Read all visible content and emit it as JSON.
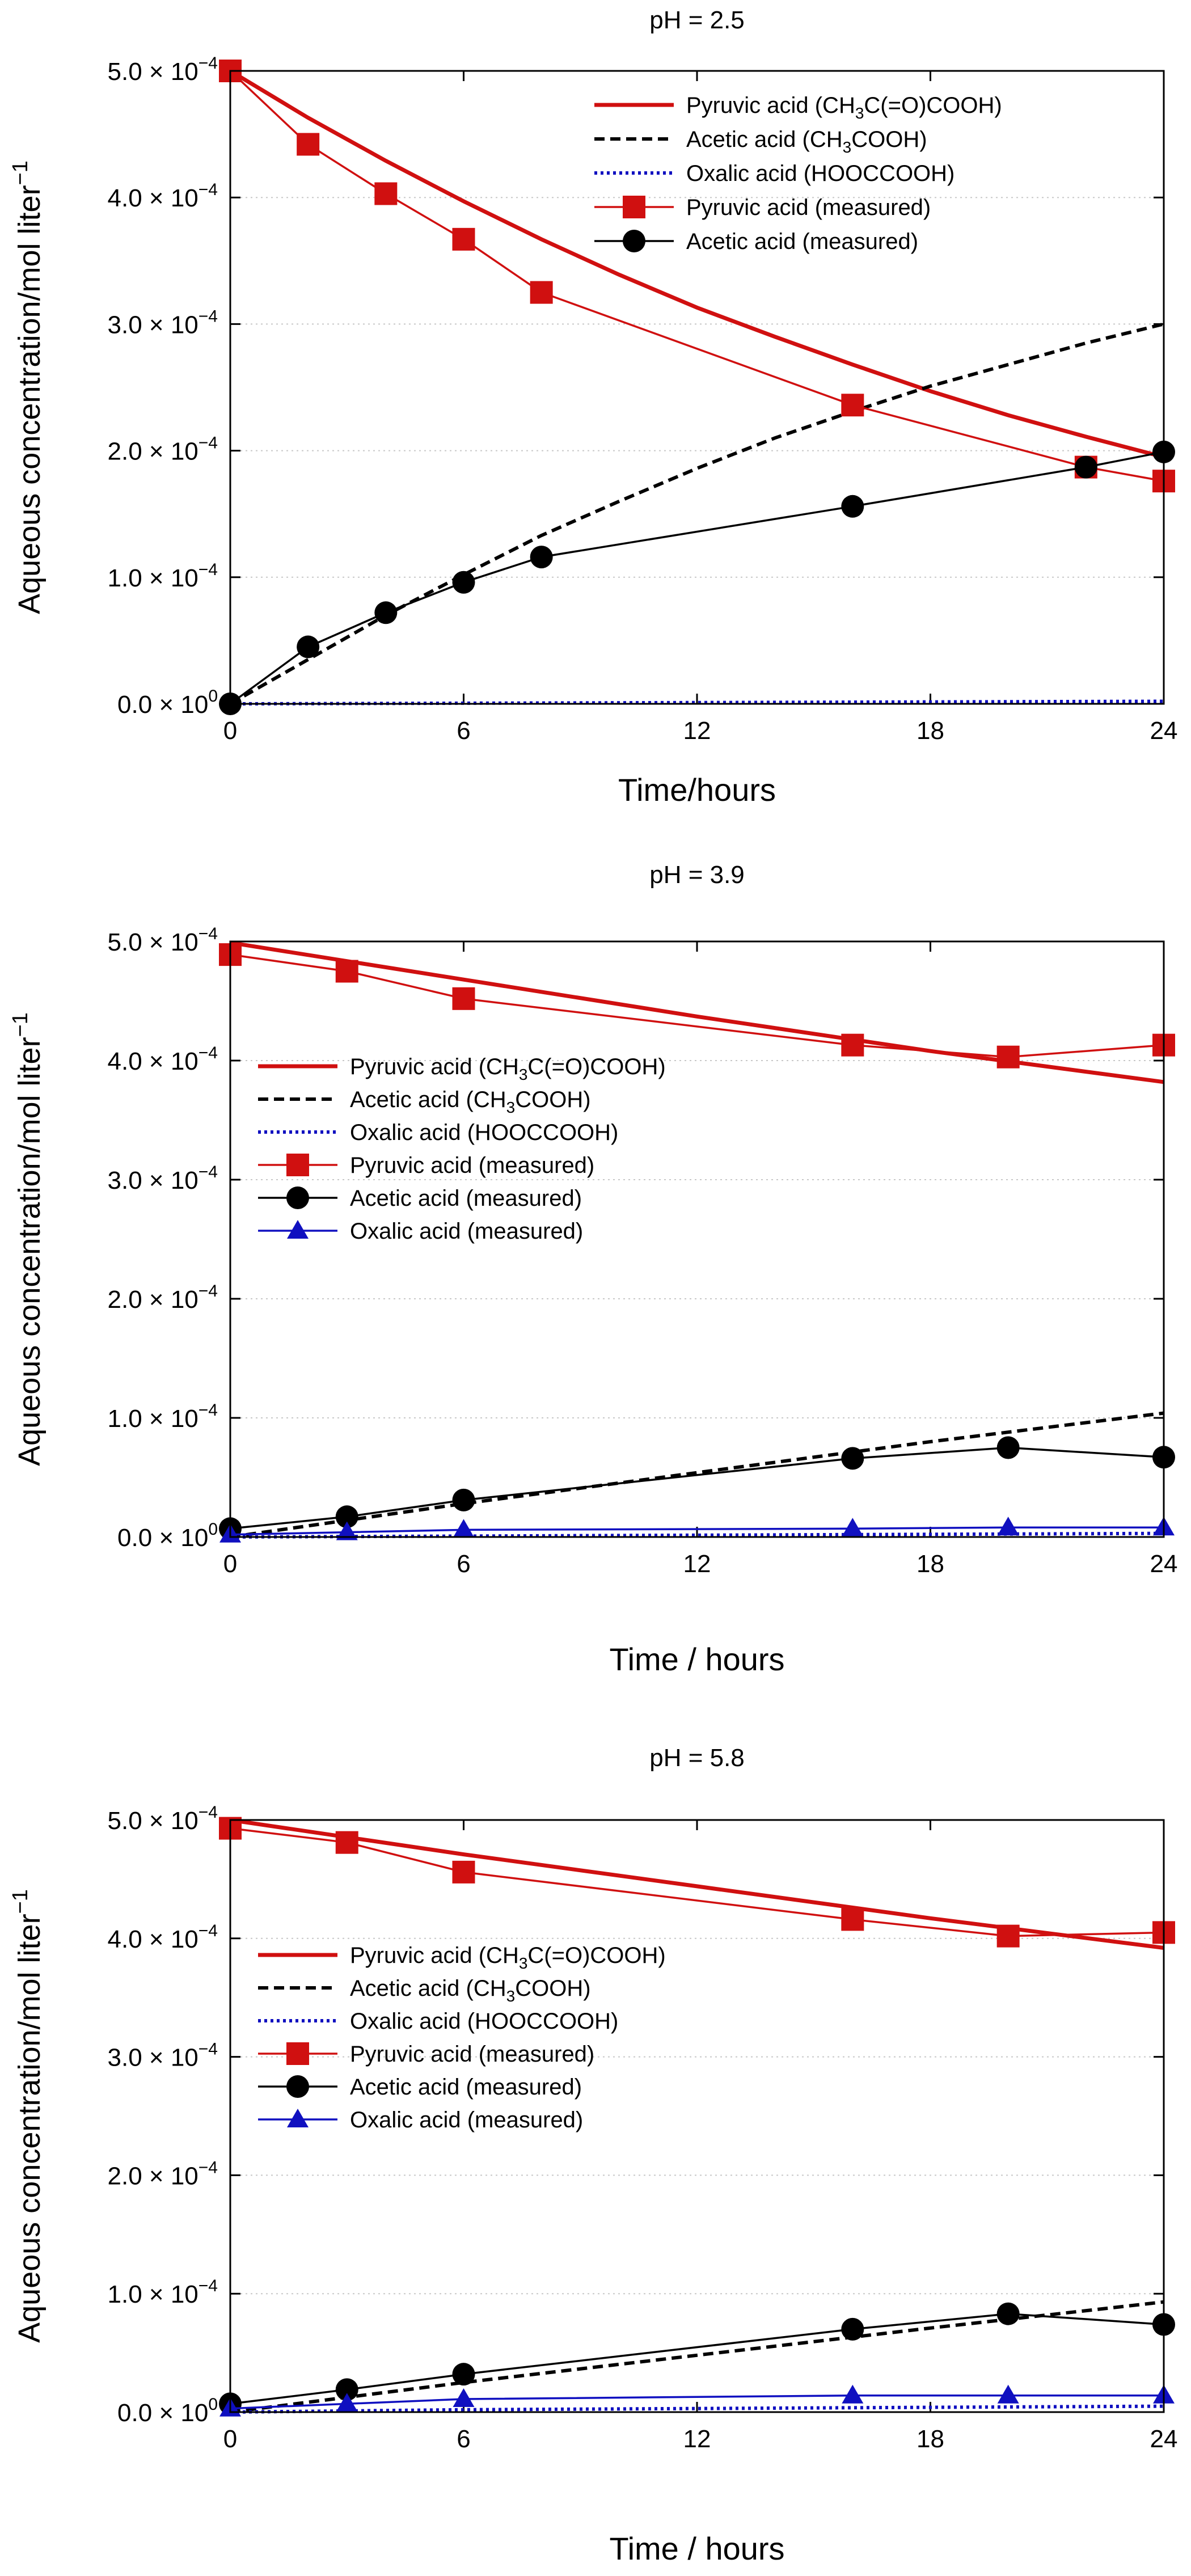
{
  "colors": {
    "pyruvic": "#d01010",
    "acetic": "#000000",
    "oxalic": "#1010c0",
    "grid": "#c8c8c8",
    "axis": "#000000"
  },
  "chart_data": [
    {
      "type": "line",
      "title": "pH = 2.5",
      "xlabel": "Time/hours",
      "ylabel": "Aqueous concentration/mol liter",
      "ylabel_sup": "−1",
      "xlim": [
        0,
        24
      ],
      "ylim": [
        0,
        0.0005
      ],
      "xticks": [
        "0",
        "6",
        "12",
        "18",
        "24"
      ],
      "yticks": [
        {
          "mantissa": "0.0",
          "exp": "0"
        },
        {
          "mantissa": "1.0",
          "exp": "−4"
        },
        {
          "mantissa": "2.0",
          "exp": "−4"
        },
        {
          "mantissa": "3.0",
          "exp": "−4"
        },
        {
          "mantissa": "4.0",
          "exp": "−4"
        },
        {
          "mantissa": "5.0",
          "exp": "−4"
        }
      ],
      "legend_position": "top-right",
      "series": [
        {
          "name": "Pyruvic acid (CH3C(=O)COOH)",
          "legend": [
            {
              "t": "Pyruvic acid (CH"
            },
            {
              "t": "3",
              "sub": true
            },
            {
              "t": "C(=O)COOH)"
            }
          ],
          "kind": "model",
          "color_key": "pyruvic",
          "dash": "",
          "x": [
            0,
            2,
            4,
            6,
            8,
            10,
            12,
            14,
            16,
            18,
            20,
            22,
            24
          ],
          "values": [
            0.0005,
            0.000463,
            0.000429,
            0.000397,
            0.000367,
            0.000339,
            0.000313,
            0.00029,
            0.000268,
            0.000247,
            0.000228,
            0.000211,
            0.000195
          ]
        },
        {
          "name": "Acetic acid (CH3COOH)",
          "legend": [
            {
              "t": "Acetic acid (CH"
            },
            {
              "t": "3",
              "sub": true
            },
            {
              "t": "COOH)"
            }
          ],
          "kind": "model",
          "color_key": "acetic",
          "dash": "18,10",
          "x": [
            0,
            2,
            4,
            6,
            8,
            10,
            12,
            14,
            16,
            18,
            20,
            22,
            24
          ],
          "values": [
            0.0,
            3.5e-05,
            7e-05,
            0.000102,
            0.000133,
            0.00016,
            0.000186,
            0.00021,
            0.000231,
            0.000251,
            0.000268,
            0.000285,
            0.0003
          ]
        },
        {
          "name": "Oxalic acid (HOOCCOOH)",
          "legend": [
            {
              "t": "Oxalic acid (HOOCCOOH)"
            }
          ],
          "kind": "model",
          "color_key": "oxalic",
          "dash": "5,6",
          "x": [
            0,
            24
          ],
          "values": [
            0.0,
            2e-06
          ]
        },
        {
          "name": "Pyruvic acid (measured)",
          "legend": [
            {
              "t": "Pyruvic acid (measured)"
            }
          ],
          "kind": "measured",
          "marker": "square",
          "color_key": "pyruvic",
          "x": [
            0,
            2,
            4,
            6,
            8,
            16,
            22,
            24
          ],
          "values": [
            0.0005,
            0.000442,
            0.000403,
            0.000367,
            0.000325,
            0.000236,
            0.000187,
            0.000176
          ]
        },
        {
          "name": "Acetic acid (measured)",
          "legend": [
            {
              "t": "Acetic acid (measured)"
            }
          ],
          "kind": "measured",
          "marker": "circle",
          "color_key": "acetic",
          "x": [
            0,
            2,
            4,
            6,
            8,
            16,
            22,
            24
          ],
          "values": [
            0.0,
            4.5e-05,
            7.2e-05,
            9.6e-05,
            0.000116,
            0.000156,
            0.000187,
            0.000199
          ]
        }
      ]
    },
    {
      "type": "line",
      "title": "pH = 3.9",
      "xlabel": "Time / hours",
      "ylabel": "Aqueous concentration/mol liter",
      "ylabel_sup": "−1",
      "xlim": [
        0,
        24
      ],
      "ylim": [
        0,
        0.0005
      ],
      "xticks": [
        "0",
        "6",
        "12",
        "18",
        "24"
      ],
      "yticks": [
        {
          "mantissa": "0.0",
          "exp": "0"
        },
        {
          "mantissa": "1.0",
          "exp": "−4"
        },
        {
          "mantissa": "2.0",
          "exp": "−4"
        },
        {
          "mantissa": "3.0",
          "exp": "−4"
        },
        {
          "mantissa": "4.0",
          "exp": "−4"
        },
        {
          "mantissa": "5.0",
          "exp": "−4"
        }
      ],
      "legend_position": "center-left",
      "series": [
        {
          "name": "Pyruvic acid (CH3C(=O)COOH)",
          "legend": [
            {
              "t": "Pyruvic acid (CH"
            },
            {
              "t": "3",
              "sub": true
            },
            {
              "t": "C(=O)COOH)"
            }
          ],
          "kind": "model",
          "color_key": "pyruvic",
          "dash": "",
          "x": [
            0,
            6,
            12,
            18,
            24
          ],
          "values": [
            0.000499,
            0.000468,
            0.000437,
            0.000408,
            0.000382
          ]
        },
        {
          "name": "Acetic acid (CH3COOH)",
          "legend": [
            {
              "t": "Acetic acid (CH"
            },
            {
              "t": "3",
              "sub": true
            },
            {
              "t": "COOH)"
            }
          ],
          "kind": "model",
          "color_key": "acetic",
          "dash": "18,10",
          "x": [
            0,
            6,
            12,
            18,
            24
          ],
          "values": [
            0.0,
            2.8e-05,
            5.4e-05,
            8e-05,
            0.000104
          ]
        },
        {
          "name": "Oxalic acid (HOOCCOOH)",
          "legend": [
            {
              "t": "Oxalic acid (HOOCCOOH)"
            }
          ],
          "kind": "model",
          "color_key": "oxalic",
          "dash": "5,6",
          "x": [
            0,
            24
          ],
          "values": [
            0.0,
            3e-06
          ]
        },
        {
          "name": "Pyruvic acid (measured)",
          "legend": [
            {
              "t": "Pyruvic acid (measured)"
            }
          ],
          "kind": "measured",
          "marker": "square",
          "color_key": "pyruvic",
          "x": [
            0,
            3,
            6,
            16,
            20,
            24
          ],
          "values": [
            0.000489,
            0.000475,
            0.000452,
            0.000413,
            0.000403,
            0.000413
          ]
        },
        {
          "name": "Acetic acid (measured)",
          "legend": [
            {
              "t": "Acetic acid (measured)"
            }
          ],
          "kind": "measured",
          "marker": "circle",
          "color_key": "acetic",
          "x": [
            0,
            3,
            6,
            16,
            20,
            24
          ],
          "values": [
            7e-06,
            1.7e-05,
            3.1e-05,
            6.6e-05,
            7.5e-05,
            6.7e-05
          ]
        },
        {
          "name": "Oxalic acid (measured)",
          "legend": [
            {
              "t": "Oxalic acid (measured)"
            }
          ],
          "kind": "measured",
          "marker": "triangle",
          "color_key": "oxalic",
          "x": [
            0,
            3,
            6,
            16,
            20,
            24
          ],
          "values": [
            2e-06,
            4e-06,
            6e-06,
            7e-06,
            8e-06,
            8e-06
          ]
        }
      ]
    },
    {
      "type": "line",
      "title": "pH = 5.8",
      "xlabel": "Time / hours",
      "ylabel": "Aqueous concentration/mol liter",
      "ylabel_sup": "−1",
      "xlim": [
        0,
        24
      ],
      "ylim": [
        0,
        0.0005
      ],
      "xticks": [
        "0",
        "6",
        "12",
        "18",
        "24"
      ],
      "yticks": [
        {
          "mantissa": "0.0",
          "exp": "0"
        },
        {
          "mantissa": "1.0",
          "exp": "−4"
        },
        {
          "mantissa": "2.0",
          "exp": "−4"
        },
        {
          "mantissa": "3.0",
          "exp": "−4"
        },
        {
          "mantissa": "4.0",
          "exp": "−4"
        },
        {
          "mantissa": "5.0",
          "exp": "−4"
        }
      ],
      "legend_position": "center-left",
      "series": [
        {
          "name": "Pyruvic acid (CH3C(=O)COOH)",
          "legend": [
            {
              "t": "Pyruvic acid (CH"
            },
            {
              "t": "3",
              "sub": true
            },
            {
              "t": "C(=O)COOH)"
            }
          ],
          "kind": "model",
          "color_key": "pyruvic",
          "dash": "",
          "x": [
            0,
            6,
            12,
            18,
            24
          ],
          "values": [
            0.0005,
            0.000471,
            0.000444,
            0.000417,
            0.000392
          ]
        },
        {
          "name": "Acetic acid (CH3COOH)",
          "legend": [
            {
              "t": "Acetic acid (CH"
            },
            {
              "t": "3",
              "sub": true
            },
            {
              "t": "COOH)"
            }
          ],
          "kind": "model",
          "color_key": "acetic",
          "dash": "18,10",
          "x": [
            0,
            6,
            12,
            18,
            24
          ],
          "values": [
            0.0,
            2.5e-05,
            4.8e-05,
            7.1e-05,
            9.3e-05
          ]
        },
        {
          "name": "Oxalic acid (HOOCCOOH)",
          "legend": [
            {
              "t": "Oxalic acid (HOOCCOOH)"
            }
          ],
          "kind": "model",
          "color_key": "oxalic",
          "dash": "5,6",
          "x": [
            0,
            6,
            12,
            18,
            24
          ],
          "values": [
            0.0,
            2e-06,
            3e-06,
            4e-06,
            5e-06
          ]
        },
        {
          "name": "Pyruvic acid (measured)",
          "legend": [
            {
              "t": "Pyruvic acid (measured)"
            }
          ],
          "kind": "measured",
          "marker": "square",
          "color_key": "pyruvic",
          "x": [
            0,
            3,
            6,
            16,
            20,
            24
          ],
          "values": [
            0.000493,
            0.000481,
            0.000456,
            0.000416,
            0.000402,
            0.000405
          ]
        },
        {
          "name": "Acetic acid (measured)",
          "legend": [
            {
              "t": "Acetic acid (measured)"
            }
          ],
          "kind": "measured",
          "marker": "circle",
          "color_key": "acetic",
          "x": [
            0,
            3,
            6,
            16,
            20,
            24
          ],
          "values": [
            7e-06,
            1.9e-05,
            3.2e-05,
            7e-05,
            8.3e-05,
            7.4e-05
          ]
        },
        {
          "name": "Oxalic acid (measured)",
          "legend": [
            {
              "t": "Oxalic acid (measured)"
            }
          ],
          "kind": "measured",
          "marker": "triangle",
          "color_key": "oxalic",
          "x": [
            0,
            3,
            6,
            16,
            20,
            24
          ],
          "values": [
            3e-06,
            7e-06,
            1.1e-05,
            1.4e-05,
            1.4e-05,
            1.4e-05
          ]
        }
      ]
    }
  ]
}
